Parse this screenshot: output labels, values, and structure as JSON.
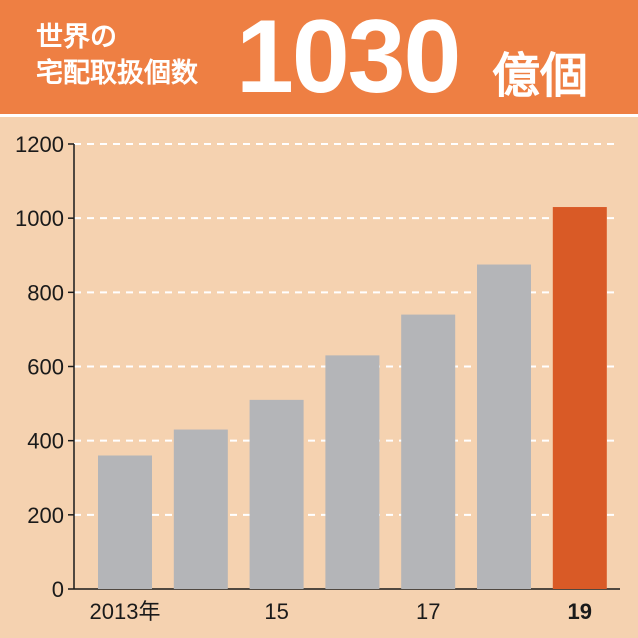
{
  "header": {
    "line1": "世界の",
    "line2": "宅配取扱個数",
    "value": "1030",
    "unit": "億個"
  },
  "colors": {
    "background": "#f5d2b0",
    "header": "#ee7f43",
    "bar": "#b4b5b8",
    "highlight_bar": "#d95a26"
  },
  "chart_data": {
    "type": "bar",
    "title": "世界の宅配取扱個数 1030億個",
    "categories": [
      "2013年",
      "",
      "15",
      "",
      "17",
      "",
      "19"
    ],
    "values": [
      360,
      430,
      510,
      630,
      740,
      875,
      1030
    ],
    "highlight_index": 6,
    "ylim": [
      0,
      1200
    ],
    "yticks": [
      0,
      200,
      400,
      600,
      800,
      1000,
      1200
    ],
    "grid": true,
    "xlabel": "",
    "ylabel": ""
  }
}
